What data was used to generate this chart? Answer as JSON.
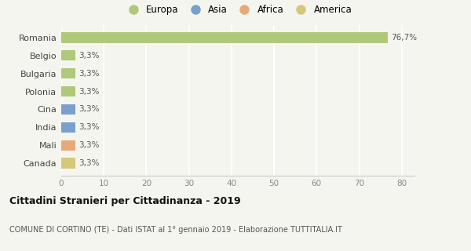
{
  "categories": [
    "Canada",
    "Mali",
    "India",
    "Cina",
    "Polonia",
    "Bulgaria",
    "Belgio",
    "Romania"
  ],
  "values": [
    3.3,
    3.3,
    3.3,
    3.3,
    3.3,
    3.3,
    3.3,
    76.7
  ],
  "bar_colors": [
    "#d4c87a",
    "#e8a878",
    "#7b9fcc",
    "#7b9fcc",
    "#b0c87a",
    "#b0c87a",
    "#b0c87a",
    "#b0c87a"
  ],
  "labels": [
    "3,3%",
    "3,3%",
    "3,3%",
    "3,3%",
    "3,3%",
    "3,3%",
    "3,3%",
    "76,7%"
  ],
  "xlim": [
    0,
    83
  ],
  "xticks": [
    0,
    10,
    20,
    30,
    40,
    50,
    60,
    70,
    80
  ],
  "title": "Cittadini Stranieri per Cittadinanza - 2019",
  "subtitle": "COMUNE DI CORTINO (TE) - Dati ISTAT al 1° gennaio 2019 - Elaborazione TUTTITALIA.IT",
  "legend_labels": [
    "Europa",
    "Asia",
    "Africa",
    "America"
  ],
  "legend_colors": [
    "#b0c87a",
    "#7b9fcc",
    "#e8a878",
    "#d4c87a"
  ],
  "background_color": "#f5f5ef",
  "grid_color": "#ffffff",
  "bar_height": 0.6
}
